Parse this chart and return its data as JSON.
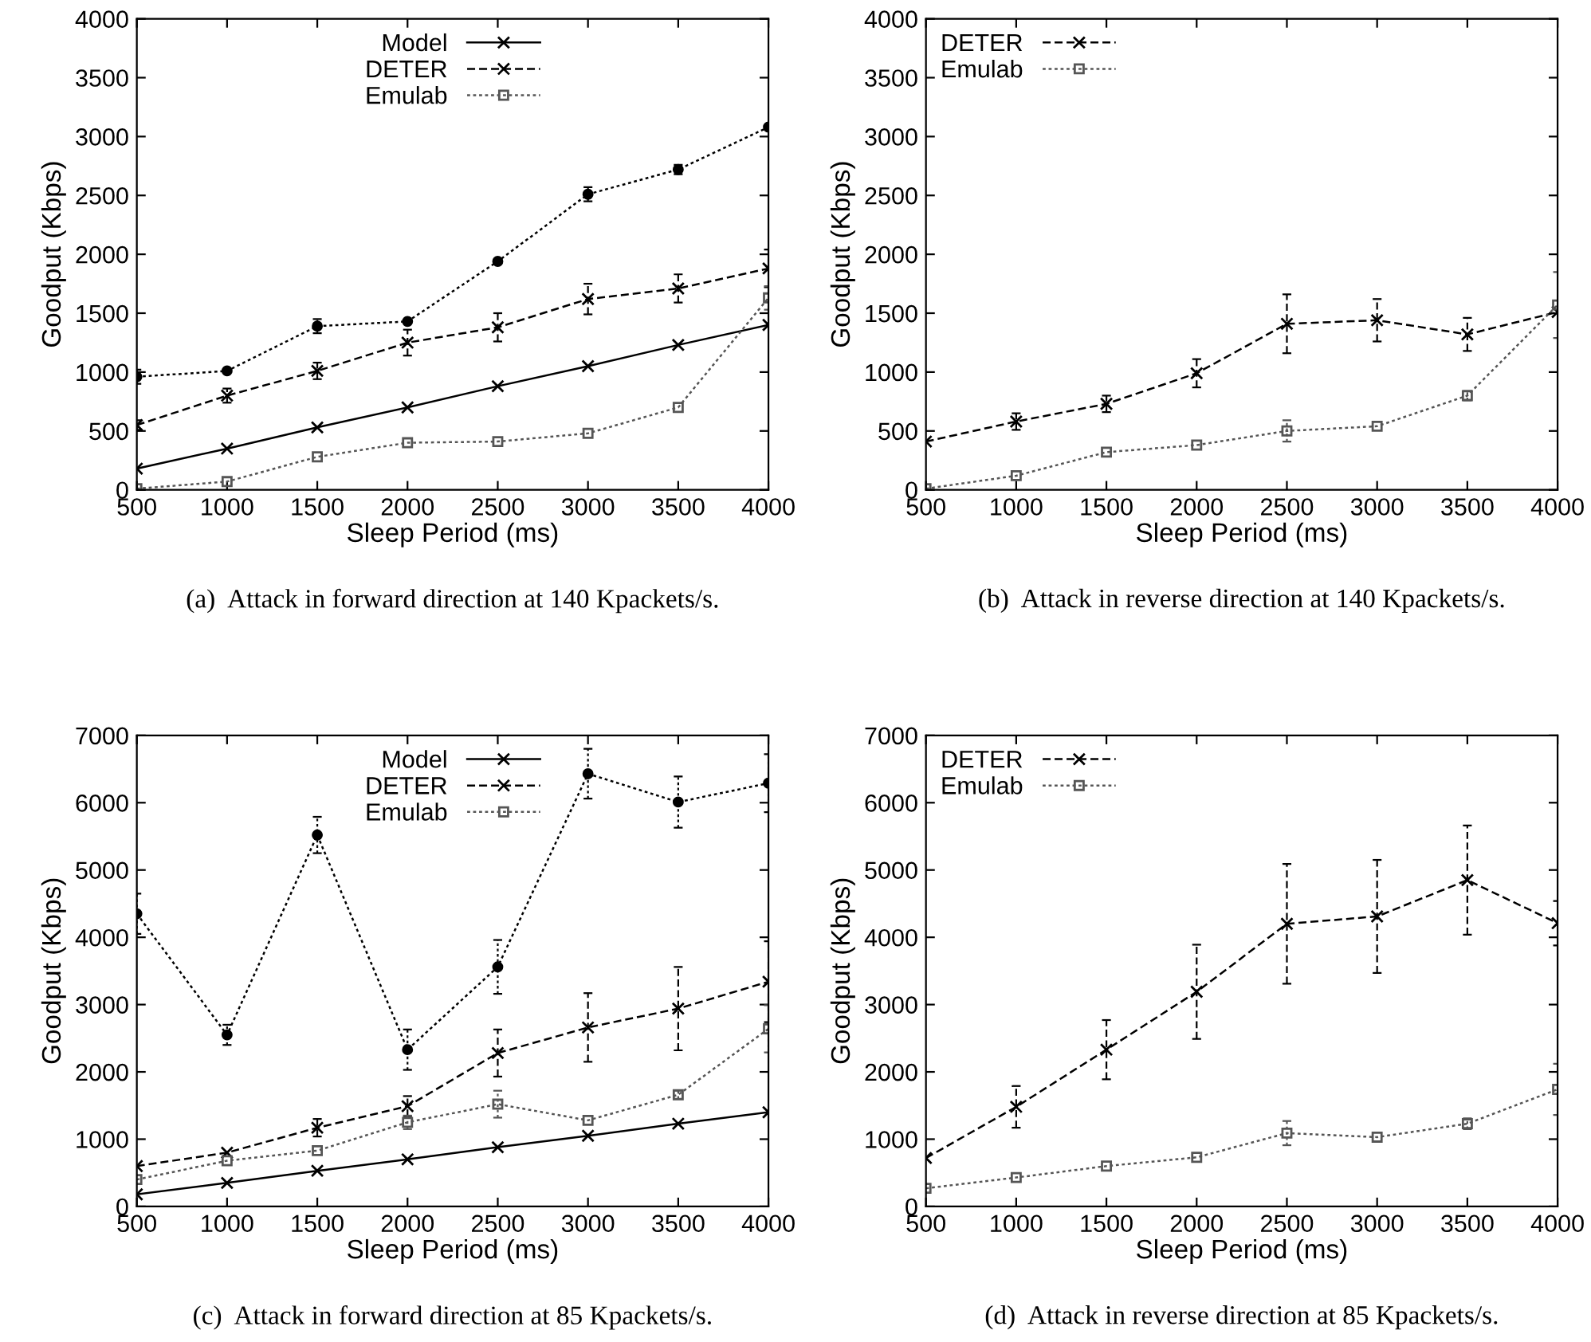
{
  "chart_data": [
    {
      "type": "line",
      "title": "(a)  Attack in forward direction at 140 Kpackets/s.",
      "xlabel": "Sleep Period (ms)",
      "ylabel": "Goodput (Kbps)",
      "x": [
        500,
        1000,
        1500,
        2000,
        2500,
        3000,
        3500,
        4000
      ],
      "xlim": [
        500,
        4000
      ],
      "xticks": [
        500,
        1000,
        1500,
        2000,
        2500,
        3000,
        3500,
        4000
      ],
      "ylim": [
        0,
        4000
      ],
      "yticks": [
        0,
        500,
        1000,
        1500,
        2000,
        2500,
        3000,
        3500,
        4000
      ],
      "grid": false,
      "legend": "top",
      "series": [
        {
          "name": "Model",
          "color": "#000000",
          "marker": "cross",
          "line_style": "solid",
          "values": [
            180,
            350,
            530,
            700,
            880,
            1050,
            1230,
            1400
          ]
        },
        {
          "color": "#000000",
          "marker": "circle",
          "line_style": "dotted",
          "values": [
            960,
            1010,
            1390,
            1430,
            1940,
            2510,
            2720,
            3080
          ],
          "errors": [
            60,
            null,
            60,
            null,
            null,
            60,
            40,
            null
          ]
        },
        {
          "name": "DETER",
          "color": "#000000",
          "marker": "cross",
          "line_style": "dashed",
          "values": [
            550,
            800,
            1010,
            1250,
            1380,
            1620,
            1710,
            1880
          ],
          "errors": [
            40,
            60,
            70,
            110,
            120,
            130,
            120,
            160
          ]
        },
        {
          "name": "Emulab",
          "color": "#555555",
          "marker": "square",
          "line_style": "dotted",
          "values": [
            10,
            70,
            280,
            400,
            410,
            480,
            700,
            1630
          ],
          "errors": [
            null,
            null,
            null,
            null,
            null,
            null,
            null,
            100
          ]
        }
      ]
    },
    {
      "type": "line",
      "title": "(b)  Attack in reverse direction at 140 Kpackets/s.",
      "xlabel": "Sleep Period (ms)",
      "ylabel": "Goodput (Kbps)",
      "x": [
        500,
        1000,
        1500,
        2000,
        2500,
        3000,
        3500,
        4000
      ],
      "xlim": [
        500,
        4000
      ],
      "xticks": [
        500,
        1000,
        1500,
        2000,
        2500,
        3000,
        3500,
        4000
      ],
      "ylim": [
        0,
        4000
      ],
      "yticks": [
        0,
        500,
        1000,
        1500,
        2000,
        2500,
        3000,
        3500,
        4000
      ],
      "grid": false,
      "legend": "top left",
      "series": [
        {
          "name": "DETER",
          "color": "#000000",
          "marker": "cross",
          "line_style": "dashed",
          "values": [
            410,
            580,
            730,
            990,
            1410,
            1440,
            1320,
            1510
          ],
          "errors": [
            null,
            70,
            70,
            120,
            250,
            180,
            140,
            null
          ]
        },
        {
          "name": "Emulab",
          "color": "#555555",
          "marker": "square",
          "line_style": "dotted",
          "values": [
            10,
            120,
            320,
            380,
            500,
            540,
            800,
            1570
          ],
          "errors": [
            null,
            null,
            null,
            null,
            90,
            null,
            40,
            280
          ]
        }
      ]
    },
    {
      "type": "line",
      "title": "(c)  Attack in forward direction at 85 Kpackets/s.",
      "xlabel": "Sleep Period (ms)",
      "ylabel": "Goodput (Kbps)",
      "x": [
        500,
        1000,
        1500,
        2000,
        2500,
        3000,
        3500,
        4000
      ],
      "xlim": [
        500,
        4000
      ],
      "xticks": [
        500,
        1000,
        1500,
        2000,
        2500,
        3000,
        3500,
        4000
      ],
      "ylim": [
        0,
        7000
      ],
      "yticks": [
        0,
        1000,
        2000,
        3000,
        4000,
        5000,
        6000,
        7000
      ],
      "grid": false,
      "legend": "top",
      "series": [
        {
          "name": "Model",
          "color": "#000000",
          "marker": "cross",
          "line_style": "solid",
          "values": [
            180,
            350,
            530,
            700,
            880,
            1050,
            1230,
            1400
          ]
        },
        {
          "color": "#000000",
          "marker": "circle",
          "line_style": "dotted",
          "values": [
            4350,
            2550,
            5520,
            2330,
            3560,
            6430,
            6010,
            6290
          ],
          "errors": [
            300,
            150,
            270,
            300,
            400,
            370,
            380,
            430
          ]
        },
        {
          "name": "DETER",
          "color": "#000000",
          "marker": "cross",
          "line_style": "dashed",
          "values": [
            600,
            800,
            1170,
            1490,
            2280,
            2660,
            2940,
            3340
          ],
          "errors": [
            null,
            null,
            130,
            150,
            350,
            510,
            620,
            600
          ]
        },
        {
          "name": "Emulab",
          "color": "#555555",
          "marker": "square",
          "line_style": "dotted",
          "values": [
            400,
            680,
            830,
            1250,
            1520,
            1280,
            1660,
            2640
          ],
          "errors": [
            null,
            null,
            null,
            100,
            200,
            null,
            60,
            350
          ]
        }
      ]
    },
    {
      "type": "line",
      "title": "(d)  Attack in reverse direction at 85 Kpackets/s.",
      "xlabel": "Sleep Period (ms)",
      "ylabel": "Goodput (Kbps)",
      "x": [
        500,
        1000,
        1500,
        2000,
        2500,
        3000,
        3500,
        4000
      ],
      "xlim": [
        500,
        4000
      ],
      "xticks": [
        500,
        1000,
        1500,
        2000,
        2500,
        3000,
        3500,
        4000
      ],
      "ylim": [
        0,
        7000
      ],
      "yticks": [
        0,
        1000,
        2000,
        3000,
        4000,
        5000,
        6000,
        7000
      ],
      "grid": false,
      "legend": "top left",
      "series": [
        {
          "name": "DETER",
          "color": "#000000",
          "marker": "cross",
          "line_style": "dashed",
          "values": [
            720,
            1480,
            2330,
            3190,
            4200,
            4310,
            4850,
            4210
          ],
          "errors": [
            null,
            310,
            440,
            700,
            890,
            840,
            810,
            330
          ]
        },
        {
          "name": "Emulab",
          "color": "#555555",
          "marker": "square",
          "line_style": "dotted",
          "values": [
            270,
            430,
            600,
            730,
            1090,
            1030,
            1230,
            1740
          ],
          "errors": [
            null,
            null,
            null,
            null,
            180,
            null,
            80,
            380
          ]
        }
      ]
    }
  ]
}
